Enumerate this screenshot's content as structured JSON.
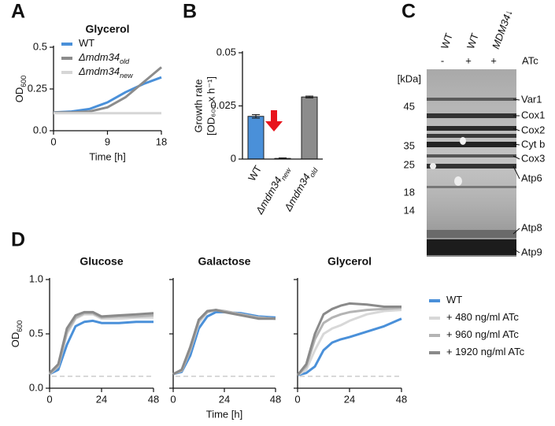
{
  "panel_labels": [
    "A",
    "B",
    "C",
    "D"
  ],
  "chart_data": [
    {
      "type": "line",
      "title": "Glycerol",
      "xlabel": "Time [h]",
      "ylabel": "OD",
      "ylabel_sub": "600",
      "x": [
        0,
        3,
        6,
        9,
        12,
        15,
        18
      ],
      "xlim": [
        0,
        18
      ],
      "xticks": [
        0,
        9,
        18
      ],
      "ylim": [
        0,
        0.5
      ],
      "yticks": [
        {
          "value": 0,
          "label": "0.0"
        },
        0.25,
        0.5
      ],
      "legend": "upper left",
      "series": [
        {
          "name": "WT",
          "color": "#4a90d9",
          "values": [
            0.11,
            0.115,
            0.13,
            0.17,
            0.23,
            0.28,
            0.32
          ]
        },
        {
          "name": "Δmdm34",
          "name_sub": "old",
          "color": "#8c8c8c",
          "values": [
            0.11,
            0.11,
            0.115,
            0.14,
            0.2,
            0.29,
            0.38
          ]
        },
        {
          "name": "Δmdm34",
          "name_sub": "new",
          "color": "#d6d6d6",
          "values": [
            0.105,
            0.105,
            0.105,
            0.105,
            0.105,
            0.105,
            0.105
          ]
        }
      ]
    },
    {
      "type": "bar",
      "ylabel": "Growth rate",
      "ylabel2": "[OD₆₀₀ x h⁻¹]",
      "categories": [
        "WT",
        "Δmdm34",
        "Δmdm34"
      ],
      "category_subs": [
        null,
        "new",
        "old"
      ],
      "values": [
        0.0201,
        0.0003,
        0.0292
      ],
      "errors": [
        0.0008,
        0.0002,
        0.0004
      ],
      "colors": [
        "#4a90d9",
        "#9aa3ad",
        "#8c8c8c"
      ],
      "ylim": [
        0,
        0.05
      ],
      "yticks": [
        0,
        0.025,
        0.05
      ]
    },
    {
      "type": "line",
      "title": "Glucose",
      "ylabel": "OD",
      "ylabel_sub": "600",
      "x": [
        0,
        4,
        8,
        12,
        16,
        20,
        24,
        32,
        40,
        48
      ],
      "xlim": [
        0,
        48
      ],
      "xticks": [
        0,
        24,
        48
      ],
      "ylim": [
        0,
        1
      ],
      "yticks": [
        {
          "value": 0,
          "label": "0.0"
        },
        0.5,
        {
          "value": 1,
          "label": "1.0"
        }
      ],
      "hline": 0.11,
      "legend": "right",
      "series": [
        {
          "name": "WT",
          "color": "#4a90d9",
          "values": [
            0.13,
            0.17,
            0.4,
            0.57,
            0.61,
            0.62,
            0.6,
            0.6,
            0.61,
            0.61
          ]
        },
        {
          "name": "+ 480 ng/ml ATc",
          "color": "#d8d8d8",
          "values": [
            0.13,
            0.2,
            0.5,
            0.64,
            0.68,
            0.68,
            0.64,
            0.64,
            0.65,
            0.65
          ]
        },
        {
          "name": "+ 960 ng/ml ATc",
          "color": "#b4b4b4",
          "values": [
            0.13,
            0.2,
            0.52,
            0.65,
            0.69,
            0.69,
            0.65,
            0.66,
            0.66,
            0.67
          ]
        },
        {
          "name": "+ 1920 ng/ml ATc",
          "color": "#8a8a8a",
          "values": [
            0.14,
            0.22,
            0.55,
            0.67,
            0.7,
            0.7,
            0.66,
            0.67,
            0.68,
            0.69
          ]
        }
      ]
    },
    {
      "type": "line",
      "title": "Galactose",
      "xlabel": "Time [h]",
      "x": [
        0,
        4,
        8,
        12,
        16,
        20,
        24,
        32,
        40,
        48
      ],
      "xlim": [
        0,
        48
      ],
      "xticks": [
        0,
        24,
        48
      ],
      "ylim": [
        0,
        1
      ],
      "hline": 0.11,
      "series": [
        {
          "color": "#4a90d9",
          "values": [
            0.13,
            0.15,
            0.3,
            0.55,
            0.66,
            0.7,
            0.7,
            0.69,
            0.66,
            0.65
          ]
        },
        {
          "color": "#d8d8d8",
          "values": [
            0.13,
            0.16,
            0.35,
            0.6,
            0.7,
            0.72,
            0.71,
            0.68,
            0.65,
            0.64
          ]
        },
        {
          "color": "#b4b4b4",
          "values": [
            0.13,
            0.16,
            0.35,
            0.62,
            0.7,
            0.72,
            0.71,
            0.68,
            0.65,
            0.64
          ]
        },
        {
          "color": "#8a8a8a",
          "values": [
            0.13,
            0.17,
            0.38,
            0.63,
            0.71,
            0.72,
            0.7,
            0.67,
            0.64,
            0.64
          ]
        }
      ]
    },
    {
      "type": "line",
      "title": "Glycerol",
      "x": [
        0,
        4,
        8,
        12,
        16,
        20,
        24,
        32,
        40,
        48
      ],
      "xlim": [
        0,
        48
      ],
      "xticks": [
        0,
        24,
        48
      ],
      "ylim": [
        0,
        1
      ],
      "hline": 0.11,
      "series": [
        {
          "color": "#4a90d9",
          "values": [
            0.12,
            0.14,
            0.2,
            0.35,
            0.42,
            0.45,
            0.47,
            0.52,
            0.57,
            0.64
          ]
        },
        {
          "color": "#d8d8d8",
          "values": [
            0.12,
            0.17,
            0.35,
            0.5,
            0.55,
            0.58,
            0.62,
            0.68,
            0.71,
            0.72
          ]
        },
        {
          "color": "#b4b4b4",
          "values": [
            0.12,
            0.2,
            0.45,
            0.6,
            0.65,
            0.68,
            0.7,
            0.72,
            0.73,
            0.74
          ]
        },
        {
          "color": "#8a8a8a",
          "values": [
            0.12,
            0.22,
            0.5,
            0.68,
            0.73,
            0.76,
            0.78,
            0.77,
            0.75,
            0.75
          ]
        }
      ]
    }
  ],
  "blot": {
    "lanes": [
      "WT",
      "WT",
      "MDM34↓"
    ],
    "treatment": [
      "-",
      "+",
      "+"
    ],
    "treatment_label": "ATc",
    "unit": "[kDa]",
    "markers": [
      "45",
      "35",
      "25",
      "18",
      "14"
    ],
    "bands": [
      "Var1",
      "Cox1",
      "Cox2",
      "Cyt b",
      "Cox3",
      "Atp6",
      "Atp8",
      "Atp9"
    ]
  }
}
